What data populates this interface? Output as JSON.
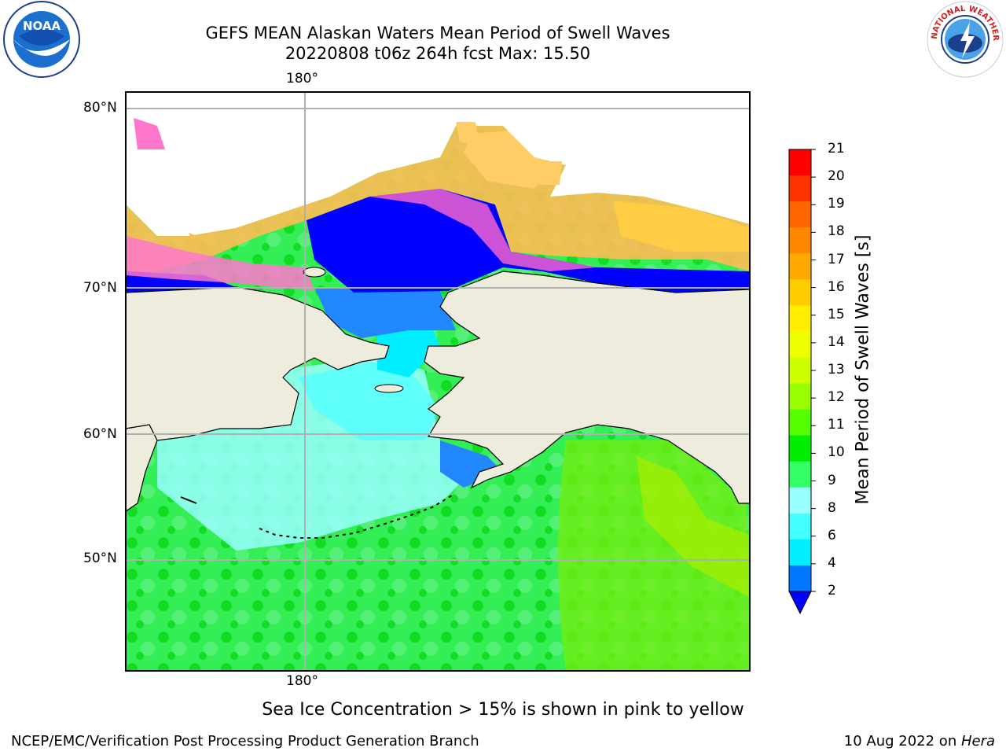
{
  "title": {
    "line1": "GEFS MEAN Alaskan Waters Mean Period of Swell Waves",
    "line2": "20220808 t06z 264h fcst   Max: 15.50"
  },
  "map": {
    "lon_labels": {
      "top": "180°",
      "bottom": "180°"
    },
    "lat_labels": [
      "80°N",
      "70°N",
      "60°N",
      "50°N"
    ],
    "land_color": "#eeecdc",
    "grid_color": "#b0b0b0"
  },
  "colorbar": {
    "label": "Mean Period of Swell Waves [s]",
    "ticks": [
      "21",
      "20",
      "19",
      "18",
      "17",
      "16",
      "15",
      "14",
      "13",
      "12",
      "11",
      "10",
      "9",
      "8",
      "6",
      "4",
      "2"
    ],
    "colors_top_to_bottom": [
      "#fe0000",
      "#ff3300",
      "#ff6600",
      "#ff8800",
      "#ffaa00",
      "#ffcc00",
      "#ffee00",
      "#eeff00",
      "#ccff00",
      "#99ff00",
      "#55ff00",
      "#00ee00",
      "#33ff66",
      "#99ffff",
      "#44ffff",
      "#00eeff",
      "#0077ff",
      "#0000ff"
    ]
  },
  "note": "Sea Ice Concentration > 15% is shown in pink to yellow",
  "footer": {
    "left": "NCEP/EMC/Verification Post Processing Product Generation Branch",
    "right_date": "10 Aug 2022 on ",
    "right_host": "Hera"
  },
  "logos": {
    "noaa": "NOAA",
    "nws": "NATIONAL WEATHER SERVICE"
  }
}
